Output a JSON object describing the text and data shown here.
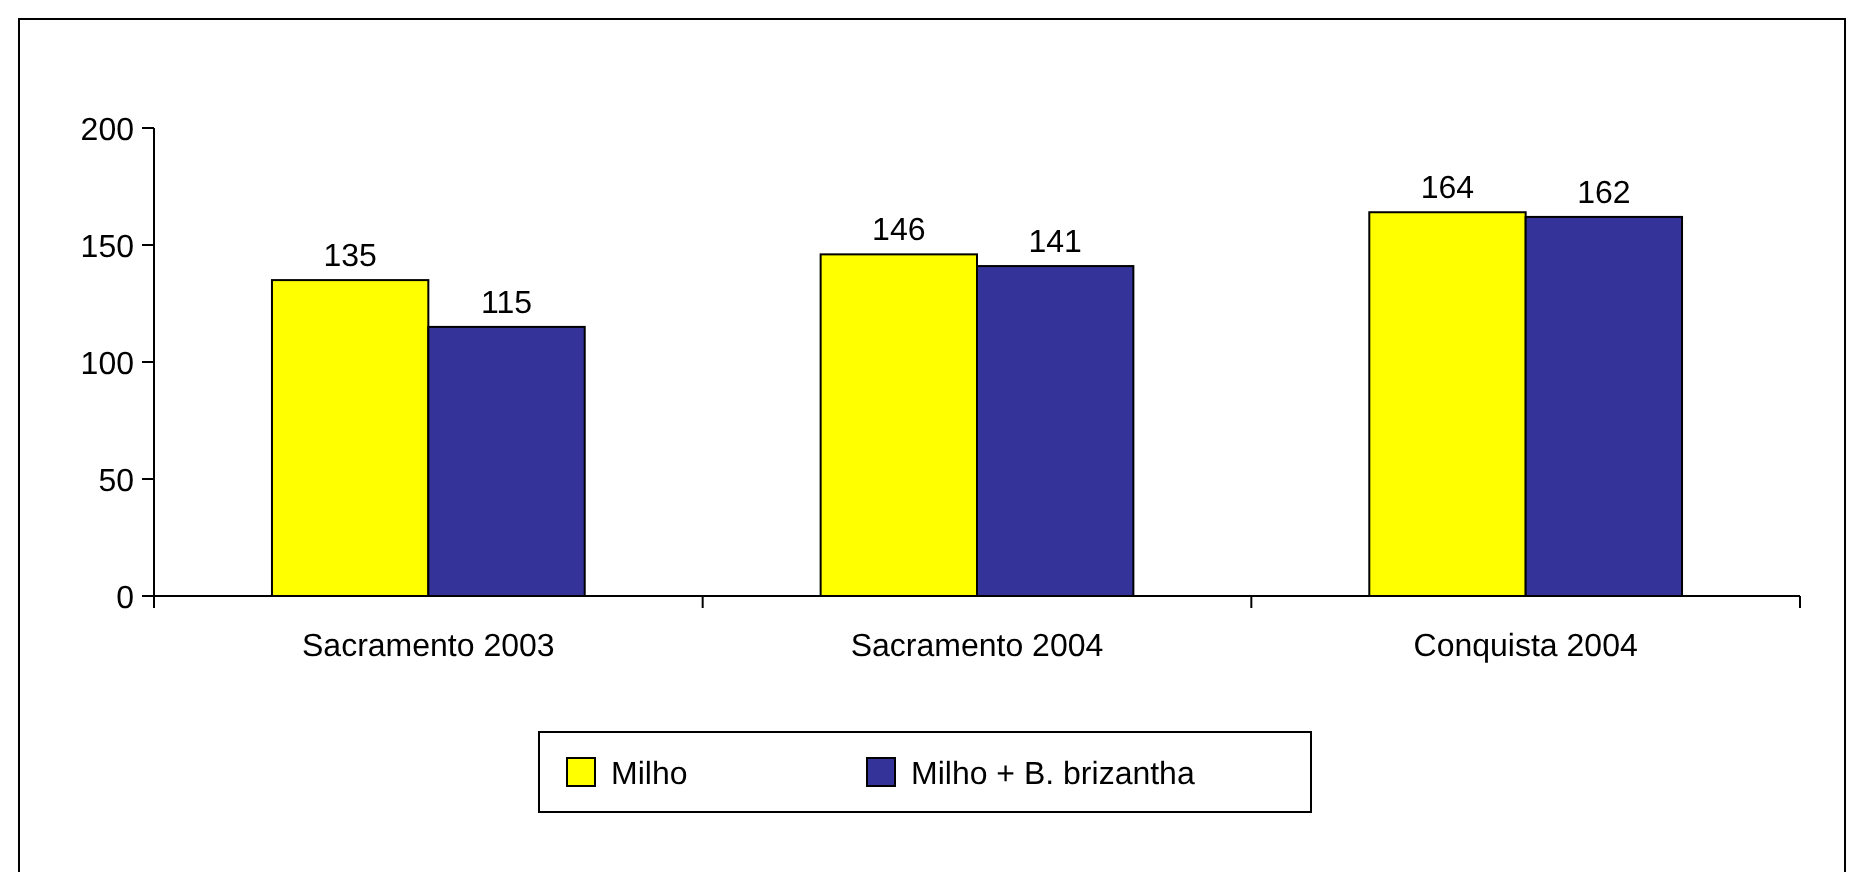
{
  "chart_data": {
    "type": "bar",
    "categories": [
      "Sacramento 2003",
      "Sacramento 2004",
      "Conquista 2004"
    ],
    "series": [
      {
        "name": "Milho",
        "color": "#ffff00",
        "values": [
          135,
          146,
          164
        ]
      },
      {
        "name": "Milho + B. brizantha",
        "color": "#333399",
        "values": [
          115,
          141,
          162
        ]
      }
    ],
    "ylim": [
      0,
      200
    ],
    "yticks": [
      0,
      50,
      100,
      150,
      200
    ],
    "data_labels": true,
    "legend": "bottom",
    "grid": false
  }
}
